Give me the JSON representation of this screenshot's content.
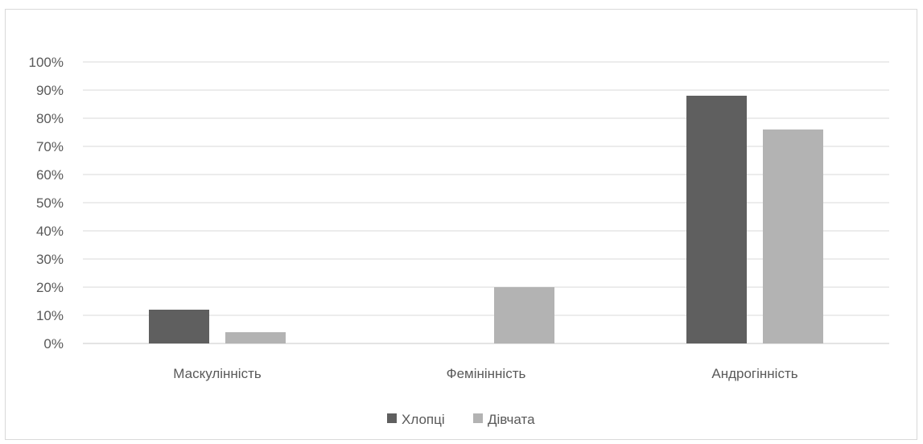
{
  "chart_data": {
    "type": "bar",
    "categories": [
      "Маскулінність",
      "Фемінінність",
      "Андрогінність"
    ],
    "series": [
      {
        "name": "Хлопці",
        "values": [
          12,
          0,
          88
        ],
        "color": "#5f5f5f"
      },
      {
        "name": "Дівчата",
        "values": [
          4,
          20,
          76
        ],
        "color": "#b3b3b3"
      }
    ],
    "ylim": [
      0,
      100
    ],
    "yticks": [
      0,
      10,
      20,
      30,
      40,
      50,
      60,
      70,
      80,
      90,
      100
    ],
    "ytick_labels": [
      "0%",
      "10%",
      "20%",
      "30%",
      "40%",
      "50%",
      "60%",
      "70%",
      "80%",
      "90%",
      "100%"
    ],
    "grid": true,
    "legend": "bottom",
    "title": "",
    "xlabel": "",
    "ylabel": ""
  }
}
